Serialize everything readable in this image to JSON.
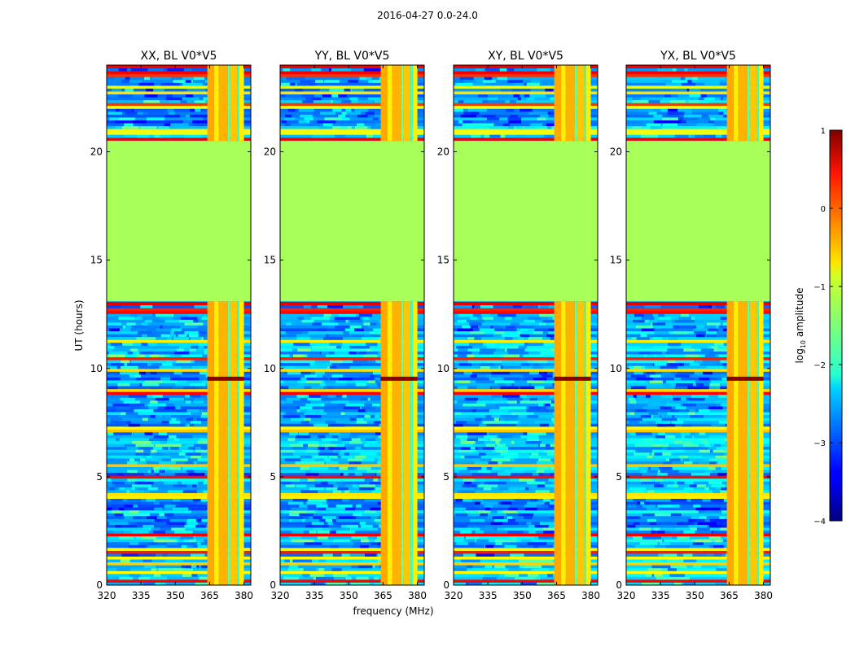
{
  "figure": {
    "suptitle": "2016-04-27 0.0-24.0",
    "xlabel": "frequency (MHz)",
    "ylabel": "UT (hours)"
  },
  "chart_data": {
    "type": "heatmap",
    "title": "2016-04-27 0.0-24.0",
    "xlabel": "frequency (MHz)",
    "ylabel": "UT (hours)",
    "xlim": [
      320,
      383
    ],
    "ylim": [
      0,
      24
    ],
    "xticks": [
      320,
      335,
      350,
      365,
      380
    ],
    "yticks": [
      0,
      5,
      10,
      15,
      20
    ],
    "panels": [
      {
        "title": "XX, BL V0*V5"
      },
      {
        "title": "YY, BL V0*V5"
      },
      {
        "title": "XY, BL V0*V5"
      },
      {
        "title": "YX, BL V0*V5"
      }
    ],
    "colorbar": {
      "label": "log₁₀ amplitude",
      "label_main": "log",
      "label_sub": "10",
      "label_rest": " amplitude",
      "range": [
        -4,
        1
      ],
      "ticks": [
        1,
        0,
        -1,
        -2,
        -3,
        -4
      ],
      "tick_labels": [
        "1",
        "0",
        "−1",
        "−2",
        "−3",
        "−4"
      ],
      "colormap": "jet"
    },
    "features": {
      "flat_region_hours": [
        13.1,
        20.5
      ],
      "flat_region_value": -1.3,
      "background_value": -2.6,
      "hot_band_MHz": [
        364,
        380
      ],
      "hot_band_value": -0.5,
      "event_hour": 9.5
    }
  }
}
